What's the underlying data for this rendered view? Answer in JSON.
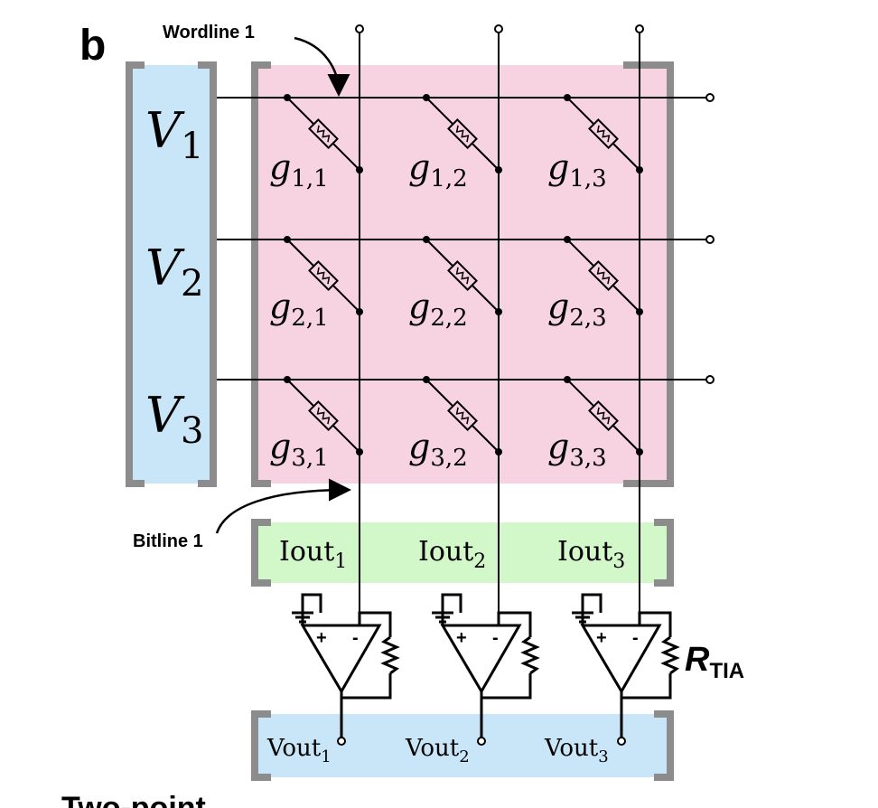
{
  "panel_label": "b",
  "labels": {
    "wordline": "Wordline 1",
    "bitline": "Bitline 1",
    "feedback_resistor": "R",
    "feedback_resistor_sub": "TIA"
  },
  "inputs": [
    {
      "symbol": "V",
      "sub": "1"
    },
    {
      "symbol": "V",
      "sub": "2"
    },
    {
      "symbol": "V",
      "sub": "3"
    }
  ],
  "conductances": [
    [
      {
        "symbol": "g",
        "sub": "1,1"
      },
      {
        "symbol": "g",
        "sub": "1,2"
      },
      {
        "symbol": "g",
        "sub": "1,3"
      }
    ],
    [
      {
        "symbol": "g",
        "sub": "2,1"
      },
      {
        "symbol": "g",
        "sub": "2,2"
      },
      {
        "symbol": "g",
        "sub": "2,3"
      }
    ],
    [
      {
        "symbol": "g",
        "sub": "3,1"
      },
      {
        "symbol": "g",
        "sub": "3,2"
      },
      {
        "symbol": "g",
        "sub": "3,3"
      }
    ]
  ],
  "currents": [
    {
      "symbol": "Iout",
      "sub": "1"
    },
    {
      "symbol": "Iout",
      "sub": "2"
    },
    {
      "symbol": "Iout",
      "sub": "3"
    }
  ],
  "outputs": [
    {
      "symbol": "Vout",
      "sub": "1"
    },
    {
      "symbol": "Vout",
      "sub": "2"
    },
    {
      "symbol": "Vout",
      "sub": "3"
    }
  ],
  "opamp_signs": {
    "plus": "+",
    "minus": "-"
  },
  "bottom_caption": "Two-point",
  "colors": {
    "input_panel": "#c8e6f7",
    "array_panel": "#f7d2e0",
    "current_panel": "#d2f7c9",
    "output_panel": "#c8e6f7",
    "bracket": "#8c8c8c",
    "wire": "#000000"
  }
}
